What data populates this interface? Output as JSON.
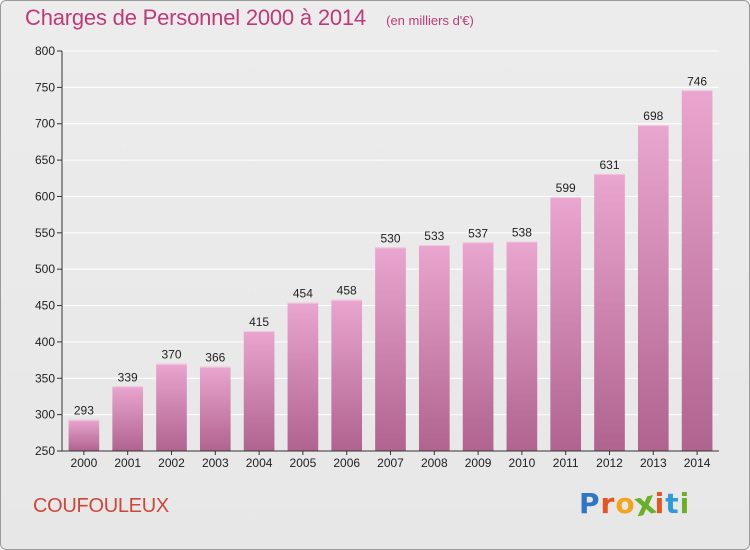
{
  "header": {
    "title": "Charges de Personnel 2000 à 2014",
    "subtitle": "(en milliers d'€)"
  },
  "footer": {
    "town": "COUFOULEUX",
    "brand_letters": [
      "P",
      "r",
      "o",
      "x",
      "i",
      "t",
      "i"
    ],
    "brand_colors": [
      "#2f76c6",
      "#e8541f",
      "#f2a51a",
      "#6ab026",
      "#e8541f",
      "#2f9ad8",
      "#6ab026"
    ]
  },
  "colors": {
    "bar_top": "#e9a6cf",
    "bar_bottom": "#b0638f",
    "axis": "#333333",
    "grid": "#ffffff",
    "accent": "#c03a7a"
  },
  "chart_data": {
    "type": "bar",
    "title": "Charges de Personnel 2000 à 2014",
    "subtitle": "(en milliers d'€)",
    "categories": [
      "2000",
      "2001",
      "2002",
      "2003",
      "2004",
      "2005",
      "2006",
      "2007",
      "2008",
      "2009",
      "2010",
      "2011",
      "2012",
      "2013",
      "2014"
    ],
    "values": [
      293,
      339,
      370,
      366,
      415,
      454,
      458,
      530,
      533,
      537,
      538,
      599,
      631,
      698,
      746
    ],
    "ylim": [
      250,
      800
    ],
    "yticks": [
      250,
      300,
      350,
      400,
      450,
      500,
      550,
      600,
      650,
      700,
      750,
      800
    ],
    "grid": true,
    "data_labels": true
  }
}
